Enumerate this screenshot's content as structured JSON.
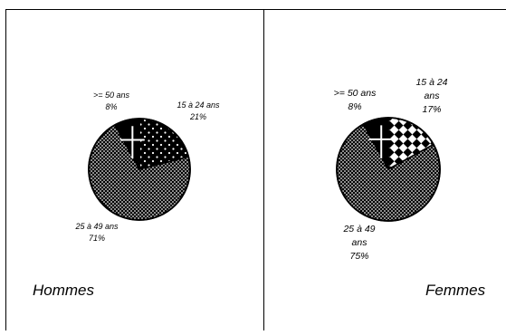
{
  "chart_data": [
    {
      "type": "pie",
      "title": "Hommes",
      "slices": [
        {
          "label": "15 à 24 ans",
          "value": 21,
          "value_label": "21%",
          "pattern": "dots-on-black"
        },
        {
          "label": "25 à 49 ans",
          "value": 71,
          "value_label": "71%",
          "pattern": "fine-dots-on-black"
        },
        {
          "label": ">= 50 ans",
          "value": 8,
          "value_label": "8%",
          "pattern": "white-cross-on-black"
        }
      ]
    },
    {
      "type": "pie",
      "title": "Femmes",
      "slices": [
        {
          "label": "15 à 24 ans",
          "value": 17,
          "value_label": "17%",
          "pattern": "checkerboard"
        },
        {
          "label": "25 à 49 ans",
          "value": 75,
          "value_label": "75%",
          "pattern": "fine-dots-on-black"
        },
        {
          "label": ">= 50 ans",
          "value": 8,
          "value_label": "8%",
          "pattern": "white-cross-on-black"
        }
      ]
    }
  ]
}
